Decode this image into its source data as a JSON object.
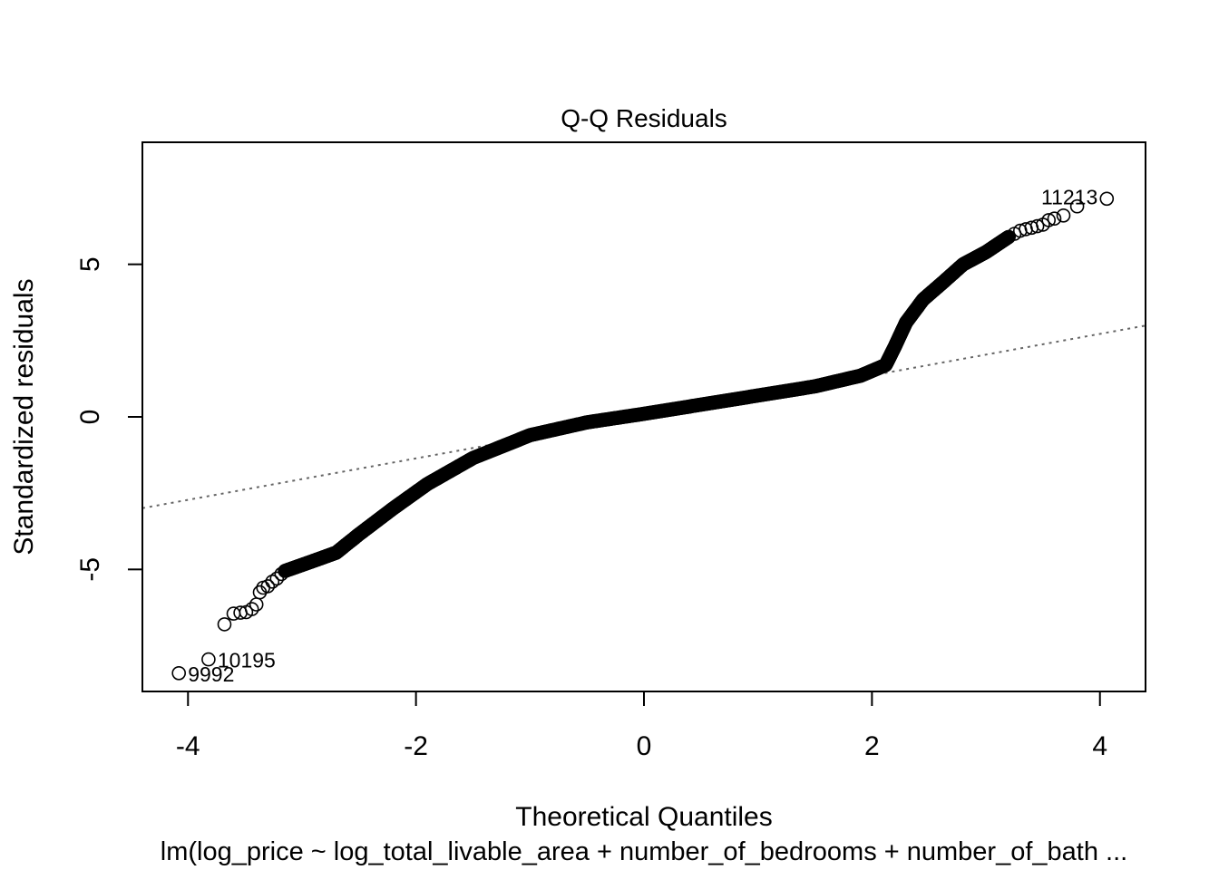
{
  "chart_data": {
    "type": "scatter",
    "title": "Q-Q Residuals",
    "xlabel": "Theoretical Quantiles",
    "ylabel": "Standardized residuals",
    "subtitle": "lm(log_price ~ log_total_livable_area + number_of_bedrooms + number_of_bath ...",
    "xlim": [
      -4.4,
      4.4
    ],
    "ylim": [
      -9.0,
      9.0
    ],
    "xticks": [
      -4,
      -2,
      0,
      2,
      4
    ],
    "xtick_labels": [
      "-4",
      "-2",
      "0",
      "2",
      "4"
    ],
    "yticks": [
      -5,
      0,
      5
    ],
    "ytick_labels": [
      "-5",
      "0",
      "5"
    ],
    "grid": false,
    "legend": null,
    "reference_line": {
      "slope": 0.68,
      "intercept": 0.0,
      "style": "dotted",
      "color": "#666666"
    },
    "point_style": {
      "shape": "open-circle",
      "color": "#000000"
    },
    "curve_knots": [
      [
        -3.15,
        -5.05
      ],
      [
        -2.9,
        -4.72
      ],
      [
        -2.7,
        -4.45
      ],
      [
        -2.5,
        -3.85
      ],
      [
        -2.2,
        -3.0
      ],
      [
        -1.9,
        -2.2
      ],
      [
        -1.5,
        -1.35
      ],
      [
        -1.0,
        -0.6
      ],
      [
        -0.5,
        -0.18
      ],
      [
        0.0,
        0.1
      ],
      [
        0.5,
        0.4
      ],
      [
        1.0,
        0.7
      ],
      [
        1.5,
        1.0
      ],
      [
        1.9,
        1.35
      ],
      [
        2.12,
        1.7
      ],
      [
        2.2,
        2.3
      ],
      [
        2.3,
        3.1
      ],
      [
        2.45,
        3.85
      ],
      [
        2.62,
        4.4
      ],
      [
        2.8,
        5.0
      ],
      [
        3.0,
        5.4
      ],
      [
        3.2,
        5.9
      ]
    ],
    "tail_points": [
      {
        "x": -4.08,
        "y": -8.4
      },
      {
        "x": -3.82,
        "y": -7.95
      },
      {
        "x": -3.68,
        "y": -6.8
      },
      {
        "x": -3.6,
        "y": -6.45
      },
      {
        "x": -3.54,
        "y": -6.42
      },
      {
        "x": -3.49,
        "y": -6.4
      },
      {
        "x": -3.44,
        "y": -6.3
      },
      {
        "x": -3.4,
        "y": -6.15
      },
      {
        "x": -3.37,
        "y": -5.75
      },
      {
        "x": -3.34,
        "y": -5.6
      },
      {
        "x": -3.3,
        "y": -5.55
      },
      {
        "x": -3.26,
        "y": -5.4
      },
      {
        "x": -3.22,
        "y": -5.3
      },
      {
        "x": -3.18,
        "y": -5.15
      },
      {
        "x": 3.25,
        "y": 6.0
      },
      {
        "x": 3.3,
        "y": 6.1
      },
      {
        "x": 3.35,
        "y": 6.15
      },
      {
        "x": 3.4,
        "y": 6.2
      },
      {
        "x": 3.45,
        "y": 6.25
      },
      {
        "x": 3.5,
        "y": 6.3
      },
      {
        "x": 3.55,
        "y": 6.45
      },
      {
        "x": 3.6,
        "y": 6.5
      },
      {
        "x": 3.68,
        "y": 6.6
      },
      {
        "x": 3.8,
        "y": 6.9
      },
      {
        "x": 4.06,
        "y": 7.15
      }
    ],
    "annotations": [
      {
        "label": "9992",
        "x": -4.08,
        "y": -8.4
      },
      {
        "label": "10195",
        "x": -3.82,
        "y": -7.95
      },
      {
        "label": "11213",
        "x": 4.06,
        "y": 7.15
      }
    ]
  }
}
